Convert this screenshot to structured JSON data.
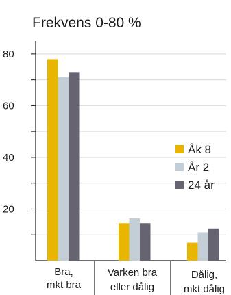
{
  "chart_data": {
    "type": "bar",
    "title": "Frekvens 0-80 %",
    "xlabel": "",
    "ylabel": "",
    "ylim": [
      0,
      85
    ],
    "yticks": [
      20,
      40,
      60,
      80
    ],
    "ytick_labels": [
      "20",
      "40",
      "60",
      "80"
    ],
    "grid": true,
    "legend_position": "right",
    "categories": [
      [
        "Bra,",
        "mkt bra"
      ],
      [
        "Varken bra",
        "eller dålig"
      ],
      [
        "Dålig,",
        "mkt dålig"
      ]
    ],
    "series": [
      {
        "name": "Åk 8",
        "color": "#e8b600",
        "values": [
          78,
          14.5,
          7
        ]
      },
      {
        "name": "År 2",
        "color": "#c4ced6",
        "values": [
          71,
          16.5,
          11
        ]
      },
      {
        "name": "24 år",
        "color": "#656470",
        "values": [
          73,
          14.5,
          12.5
        ]
      }
    ]
  }
}
